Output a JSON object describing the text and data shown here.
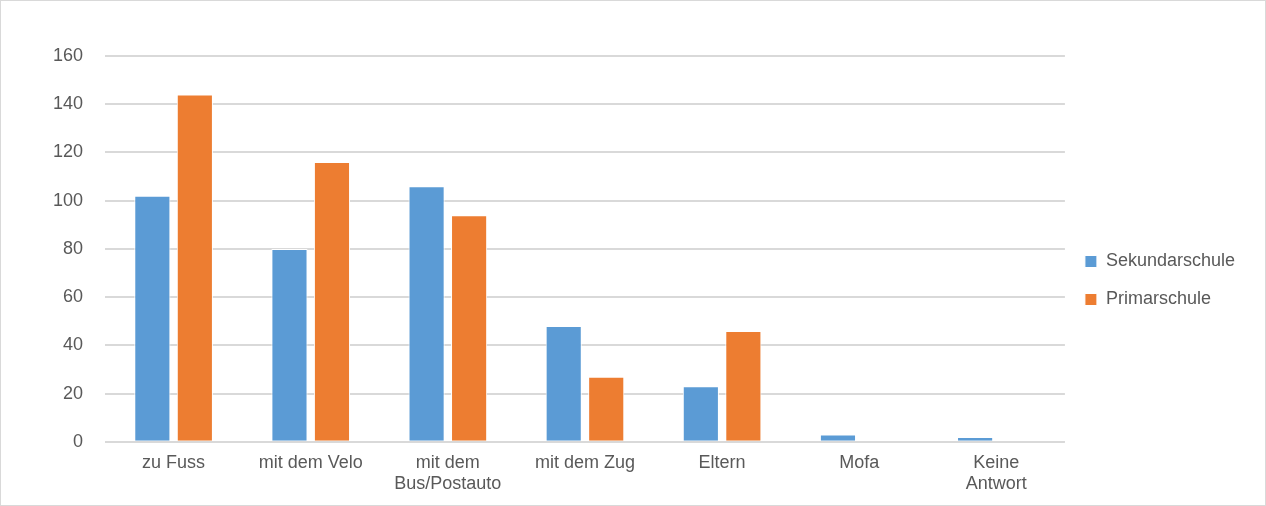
{
  "chart_data": {
    "type": "bar",
    "categories": [
      "zu Fuss",
      "mit dem Velo",
      "mit dem Bus/Postauto",
      "mit dem Zug",
      "Eltern",
      "Mofa",
      "Keine Antwort"
    ],
    "series": [
      {
        "name": "Sekundarschule",
        "color": "#5b9bd5",
        "values": [
          102,
          80,
          106,
          48,
          23,
          3,
          2
        ]
      },
      {
        "name": "Primarschule",
        "color": "#ed7d31",
        "values": [
          144,
          116,
          94,
          27,
          46,
          0,
          0
        ]
      }
    ],
    "ylim": [
      0,
      160
    ],
    "yticks": [
      0,
      20,
      40,
      60,
      80,
      100,
      120,
      140,
      160
    ],
    "grid": "y",
    "legend": "right"
  }
}
